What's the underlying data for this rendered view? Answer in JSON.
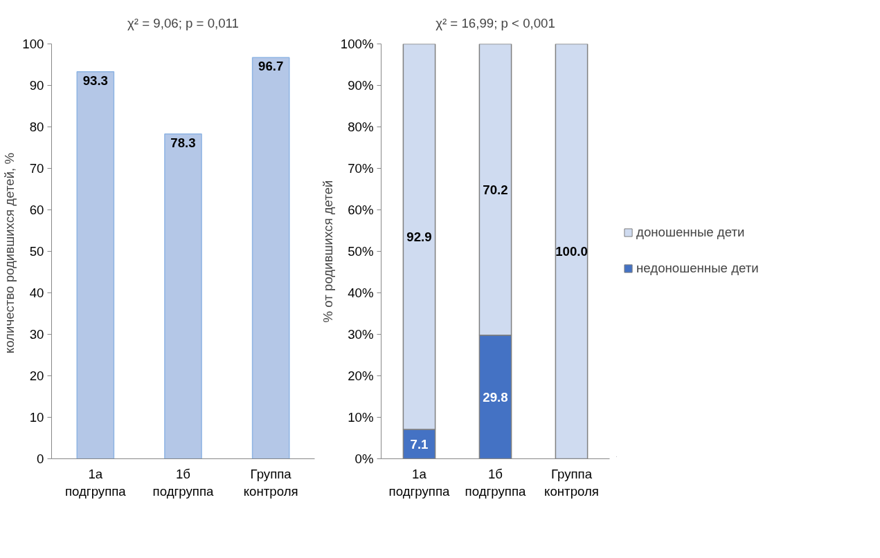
{
  "chart_data": [
    {
      "type": "bar",
      "annotations": [
        "χ² = 9,06; p = 0,011"
      ],
      "ylabel": "количество родившихся детей,  %",
      "categories": [
        "1а подгруппа",
        "1б подгруппа",
        "Группа контроля"
      ],
      "series": [
        {
          "color": "#b4c7e7",
          "values": [
            93.3,
            78.3,
            96.7
          ]
        }
      ],
      "ylim": [
        0,
        100
      ],
      "yticks": [
        0,
        10,
        20,
        30,
        40,
        50,
        60,
        70,
        80,
        90,
        100
      ],
      "data_labels": true,
      "grid": false,
      "legend": false
    },
    {
      "type": "bar",
      "stacked": true,
      "annotations": [
        "χ² = 16,99; p < 0,001"
      ],
      "ylabel": "% от родившихся детей",
      "categories": [
        "1а подгруппа",
        "1б подгруппа",
        "Группа контроля"
      ],
      "series": [
        {
          "name": "недоношенные дети",
          "color": "#4472c4",
          "values": [
            7.1,
            29.8,
            null
          ],
          "value_labels": [
            "7.1",
            "29.8",
            null
          ]
        },
        {
          "name": "доношенные дети",
          "color": "#cfdbf0",
          "values": [
            92.9,
            70.2,
            100.0
          ],
          "value_labels": [
            "92.9",
            "70.2",
            "100.0"
          ]
        }
      ],
      "ylim": [
        0,
        100
      ],
      "yticks": [
        {
          "value": 0,
          "label": "0%"
        },
        {
          "value": 10,
          "label": "10%"
        },
        {
          "value": 20,
          "label": "20%"
        },
        {
          "value": 30,
          "label": "30%"
        },
        {
          "value": 40,
          "label": "40%"
        },
        {
          "value": 50,
          "label": "50%"
        },
        {
          "value": 60,
          "label": "60%"
        },
        {
          "value": 70,
          "label": "70%"
        },
        {
          "value": 80,
          "label": "80%"
        },
        {
          "value": 90,
          "label": "90%"
        },
        {
          "value": 100,
          "label": "100%"
        }
      ],
      "grid": false,
      "legend": "right"
    }
  ]
}
